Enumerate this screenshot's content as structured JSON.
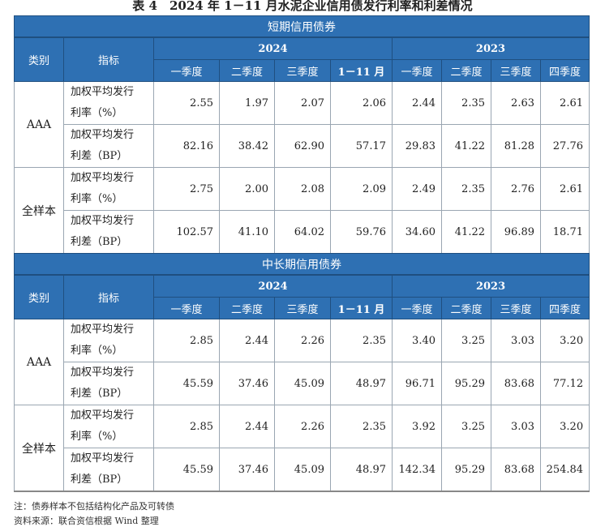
{
  "title": "表 4　2024 年 1－11 月水泥企业信用债发行利率和利差情况",
  "headers": {
    "category": "类别",
    "indicator": "指标",
    "year_2024": "2024",
    "year_2023": "2023",
    "periods_2024": [
      "一季度",
      "二季度",
      "三季度",
      "1－11 月"
    ],
    "periods_2023": [
      "一季度",
      "二季度",
      "三季度",
      "四季度"
    ]
  },
  "sections": [
    {
      "title": "短期信用债券",
      "groups": [
        {
          "category": "AAA",
          "rows": [
            {
              "indicator": [
                "加权平均发行",
                "利率（%）"
              ],
              "values": [
                "2.55",
                "1.97",
                "2.07",
                "2.06",
                "2.44",
                "2.35",
                "2.63",
                "2.61"
              ]
            },
            {
              "indicator": [
                "加权平均发行",
                "利差（BP）"
              ],
              "values": [
                "82.16",
                "38.42",
                "62.90",
                "57.17",
                "29.83",
                "41.22",
                "81.28",
                "27.76"
              ]
            }
          ]
        },
        {
          "category": "全样本",
          "rows": [
            {
              "indicator": [
                "加权平均发行",
                "利率（%）"
              ],
              "values": [
                "2.75",
                "2.00",
                "2.08",
                "2.09",
                "2.49",
                "2.35",
                "2.76",
                "2.61"
              ]
            },
            {
              "indicator": [
                "加权平均发行",
                "利差（BP）"
              ],
              "values": [
                "102.57",
                "41.10",
                "64.02",
                "59.76",
                "34.60",
                "41.22",
                "96.89",
                "18.71"
              ]
            }
          ]
        }
      ]
    },
    {
      "title": "中长期信用债券",
      "groups": [
        {
          "category": "AAA",
          "rows": [
            {
              "indicator": [
                "加权平均发行",
                "利率（%）"
              ],
              "values": [
                "2.85",
                "2.44",
                "2.26",
                "2.35",
                "3.40",
                "3.25",
                "3.03",
                "3.20"
              ]
            },
            {
              "indicator": [
                "加权平均发行",
                "利差（BP）"
              ],
              "values": [
                "45.59",
                "37.46",
                "45.09",
                "48.97",
                "96.71",
                "95.29",
                "83.68",
                "77.12"
              ]
            }
          ]
        },
        {
          "category": "全样本",
          "rows": [
            {
              "indicator": [
                "加权平均发行",
                "利率（%）"
              ],
              "values": [
                "2.85",
                "2.44",
                "2.26",
                "2.35",
                "3.92",
                "3.25",
                "3.03",
                "3.20"
              ]
            },
            {
              "indicator": [
                "加权平均发行",
                "利差（BP）"
              ],
              "values": [
                "45.59",
                "37.46",
                "45.09",
                "48.97",
                "142.34",
                "95.29",
                "83.68",
                "254.84"
              ]
            }
          ]
        }
      ]
    }
  ],
  "notes": {
    "note": "注：债券样本不包括结构化产品及可转债",
    "source": "资料来源：联合资信根据 Wind 整理"
  },
  "colors": {
    "header_bg": "#2e70b3",
    "header_text": "#ffffff"
  }
}
